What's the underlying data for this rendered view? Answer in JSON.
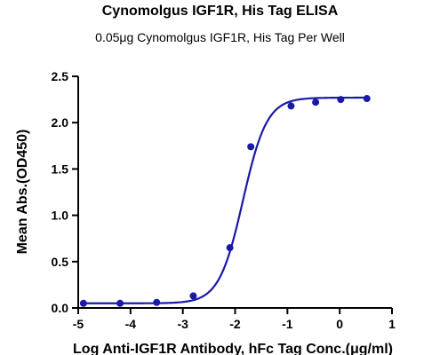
{
  "chart_data": {
    "type": "scatter",
    "title": "Cynomolgus IGF1R, His Tag ELISA",
    "subtitle": "0.05μg Cynomolgus IGF1R, His Tag Per Well",
    "xlabel": "Log Anti-IGF1R Antibody, hFc Tag Conc.(μg/ml)",
    "ylabel": "Mean Abs.(OD450)",
    "xlim": [
      -5,
      1
    ],
    "ylim": [
      0,
      2.5
    ],
    "x_ticks": [
      -5,
      -4,
      -3,
      -2,
      -1,
      0,
      1
    ],
    "y_ticks": [
      0.0,
      0.5,
      1.0,
      1.5,
      2.0,
      2.5
    ],
    "x_tick_labels": [
      "-5",
      "-4",
      "-3",
      "-2",
      "-1",
      "0",
      "1"
    ],
    "y_tick_labels": [
      "0.0",
      "0.5",
      "1.0",
      "1.5",
      "2.0",
      "2.5"
    ],
    "grid": false,
    "legend": "none",
    "series": [
      {
        "x": [
          -4.9,
          -4.2,
          -3.5,
          -2.8,
          -2.1,
          -1.7,
          -0.93,
          -0.46,
          0.02,
          0.52
        ],
        "y": [
          0.05,
          0.05,
          0.06,
          0.13,
          0.65,
          1.74,
          2.18,
          2.22,
          2.25,
          2.26
        ]
      }
    ],
    "fit_curve": {
      "model": "4PL",
      "bottom": 0.05,
      "top": 2.27,
      "log_ec50": -1.85,
      "hill_slope": 1.9,
      "x_range": [
        -4.9,
        0.52
      ]
    },
    "color": "#1a1aa6"
  }
}
